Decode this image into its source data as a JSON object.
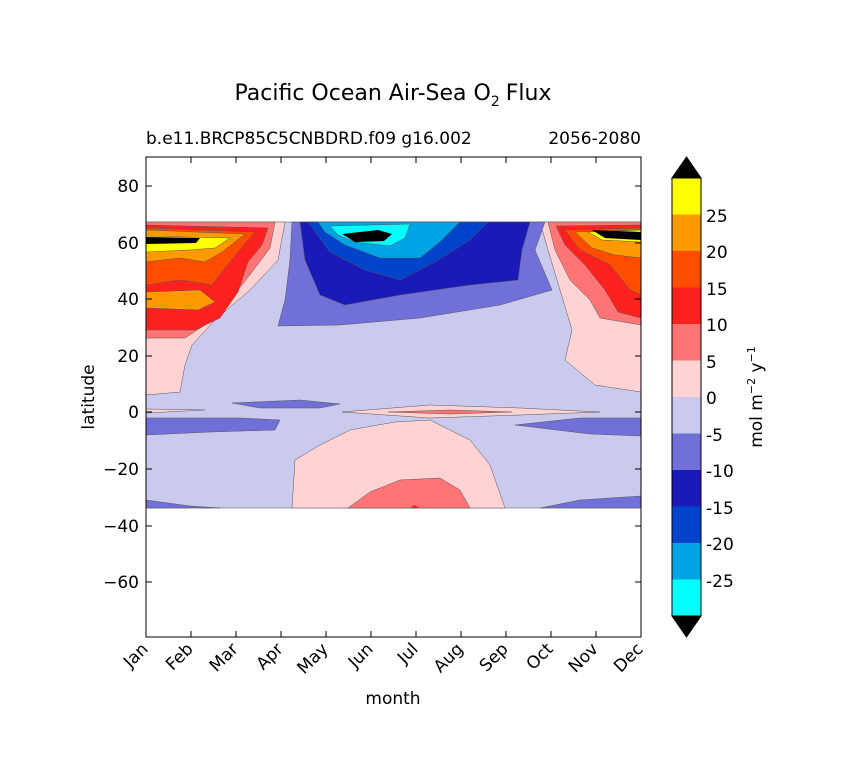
{
  "chart_data": {
    "type": "heatmap",
    "title_main": "Pacific Ocean Air-Sea O",
    "title_sub": "2",
    "title_end": "Flux",
    "subtitle_left": "b.e11.BRCP85C5CNBDRD.f09 g16.002",
    "subtitle_right": "2056-2080",
    "xlabel": "month",
    "ylabel": "latitude",
    "xticks": [
      "Jan",
      "Feb",
      "Mar",
      "Apr",
      "May",
      "Jun",
      "Jul",
      "Aug",
      "Sep",
      "Oct",
      "Nov",
      "Dec"
    ],
    "yticks": [
      "80",
      "60",
      "40",
      "20",
      "0",
      "−20",
      "−40",
      "−60"
    ],
    "ytick_values": [
      80,
      60,
      40,
      20,
      0,
      -20,
      -40,
      -60
    ],
    "ylim": [
      -79,
      90
    ],
    "data_lat_range": [
      -34,
      67
    ],
    "colorbar": {
      "label_main": "mol m",
      "label_exp1": "−2",
      "label_mid": " y",
      "label_exp2": "−1",
      "levels": [
        "25",
        "20",
        "15",
        "10",
        "5",
        "0",
        "-5",
        "-10",
        "-15",
        "-20",
        "-25"
      ],
      "level_values": [
        25,
        20,
        15,
        10,
        5,
        0,
        -5,
        -10,
        -15,
        -20,
        -25
      ],
      "colors_top_to_bottom": [
        "#ffff00",
        "#ff9900",
        "#ff4d00",
        "#ff2020",
        "#ff7575",
        "#ffd3d3",
        "#cacaee",
        "#7070d8",
        "#1a1ab8",
        "#0044cc",
        "#00a4e4",
        "#00ffff"
      ],
      "extend_color": "#000000"
    },
    "grid": false
  }
}
